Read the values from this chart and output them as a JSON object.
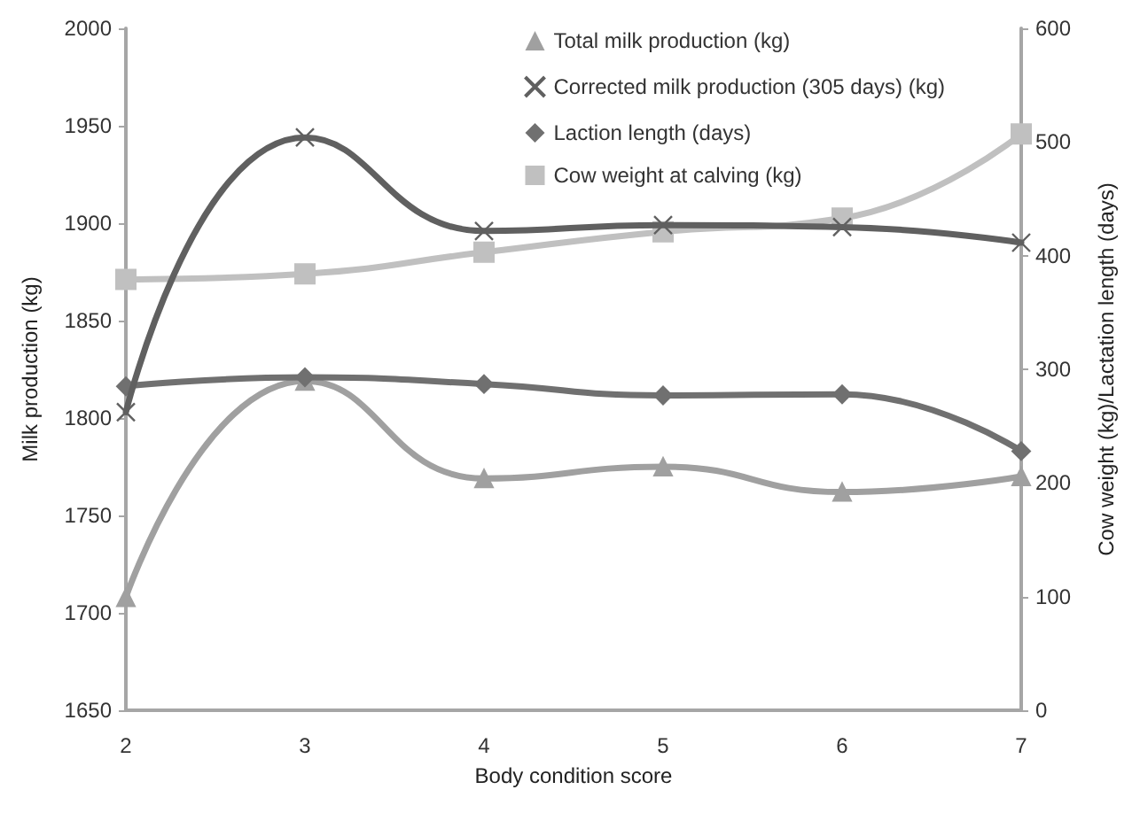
{
  "chart_data": {
    "type": "line",
    "xlabel": "Body condition score",
    "ylabel": "Milk production (kg)",
    "y2label": "Cow weight (kg)/Lactation length (days)",
    "x": [
      2,
      3,
      4,
      5,
      6,
      7
    ],
    "xlim": [
      2,
      7
    ],
    "xticks": [
      2,
      3,
      4,
      5,
      6,
      7
    ],
    "ylim": [
      1650,
      2000
    ],
    "yticks": [
      1650,
      1700,
      1750,
      1800,
      1850,
      1900,
      1950,
      2000
    ],
    "y2lim": [
      0,
      600
    ],
    "y2ticks": [
      0,
      100,
      200,
      300,
      400,
      500,
      600
    ],
    "grid": false,
    "legend": "top right",
    "line_style": "solid",
    "series": [
      {
        "name": "Total milk production (kg)",
        "color": "#a0a0a0",
        "marker": "triangle",
        "values": [
          1708,
          1819,
          1769,
          1775,
          1762,
          1770
        ]
      },
      {
        "name": "Corrected milk production (305 days) (kg)",
        "color": "#606060",
        "marker": "cross",
        "values": [
          1803,
          1944,
          1896,
          1899,
          1898,
          1890
        ]
      },
      {
        "name": "Laction length (days)",
        "color": "#707070",
        "marker": "diamond",
        "axis": "y2",
        "values": [
          285,
          293,
          287,
          277,
          278,
          228
        ]
      },
      {
        "name": "Cow weight at calving (kg)",
        "color": "#c0c0c0",
        "marker": "square",
        "axis": "y2",
        "values": [
          379,
          384,
          403,
          421,
          433,
          507
        ]
      }
    ]
  }
}
